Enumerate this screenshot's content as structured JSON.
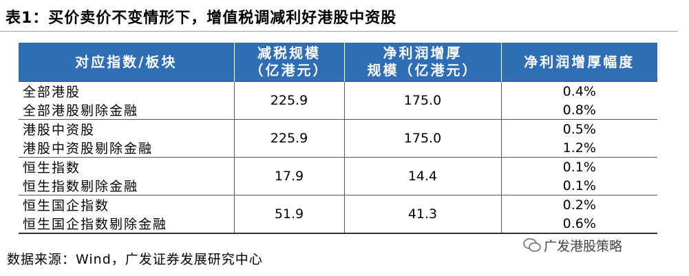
{
  "title": "表1：买价卖价不变情形下，增值税调减利好港股中资股",
  "table": {
    "header": [
      [
        "对应指数/板块"
      ],
      [
        "减税规模",
        "（亿港元）"
      ],
      [
        "净利润增厚",
        "规模（亿港元）"
      ],
      [
        "净利润增厚幅度"
      ]
    ],
    "groups": [
      {
        "names": [
          "全部港股",
          "全部港股剔除金融"
        ],
        "tax_cut": "225.9",
        "profit_increase": "175.0",
        "pct": [
          "0.4%",
          "0.8%"
        ]
      },
      {
        "names": [
          "港股中资股",
          "港股中资股剔除金融"
        ],
        "tax_cut": "225.9",
        "profit_increase": "175.0",
        "pct": [
          "0.5%",
          "1.2%"
        ]
      },
      {
        "names": [
          "恒生指数",
          "恒生指数剔除金融"
        ],
        "tax_cut": "17.9",
        "profit_increase": "14.4",
        "pct": [
          "0.1%",
          "0.1%"
        ]
      },
      {
        "names": [
          "恒生国企指数",
          "恒生国企指数剔除金融"
        ],
        "tax_cut": "51.9",
        "profit_increase": "41.3",
        "pct": [
          "0.2%",
          "0.6%"
        ]
      }
    ]
  },
  "source": "数据来源：Wind，广发证券发展研究中心",
  "watermark": "广发港股策略"
}
